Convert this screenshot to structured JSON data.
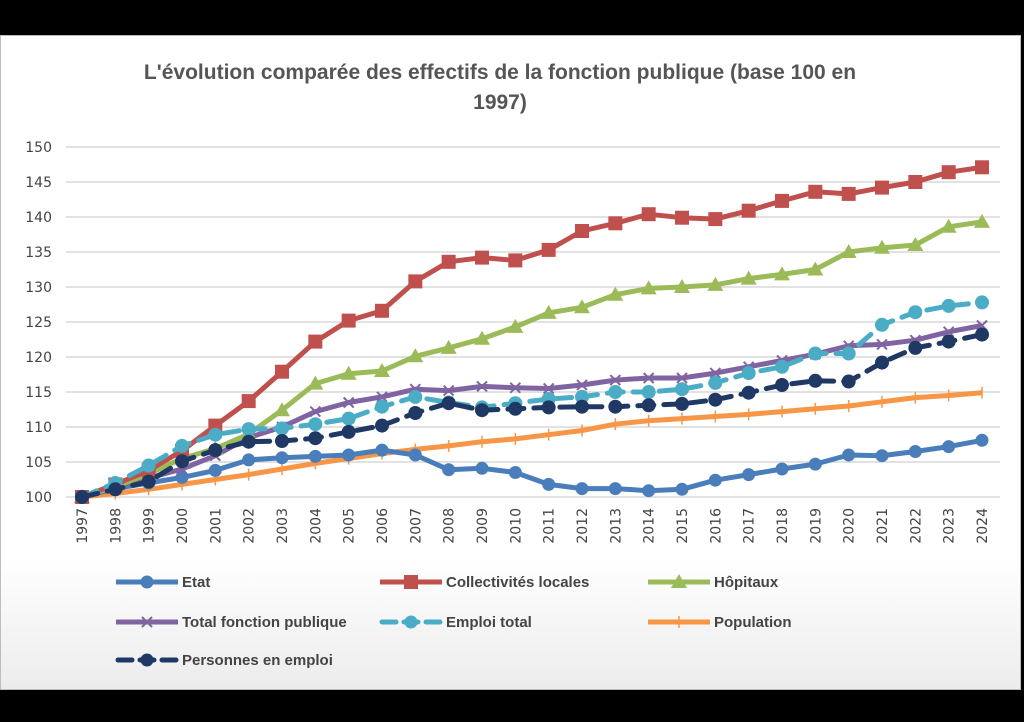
{
  "chart_data": {
    "type": "line",
    "title": "L'évolution comparée des effectifs de la fonction publique (base 100 en 1997)",
    "title_lines": [
      "L'évolution comparée des effectifs de la fonction publique (base 100 en",
      "1997)"
    ],
    "xlabel": "",
    "ylabel": "",
    "ylim": [
      100,
      150
    ],
    "yticks": [
      100,
      105,
      110,
      115,
      120,
      125,
      130,
      135,
      140,
      145,
      150
    ],
    "grid": true,
    "legend_position": "bottom",
    "categories": [
      "1997",
      "1998",
      "1999",
      "2000",
      "2001",
      "2002",
      "2003",
      "2004",
      "2005",
      "2006",
      "2007",
      "2008",
      "2009",
      "2010",
      "2011",
      "2012",
      "2013",
      "2014",
      "2015",
      "2016",
      "2017",
      "2018",
      "2019",
      "2020",
      "2021",
      "2022",
      "2023",
      "2024"
    ],
    "series": [
      {
        "name": "Etat",
        "color": "#4a7ebb",
        "marker": "circle",
        "dash": false,
        "values": [
          100,
          101.2,
          102.0,
          102.8,
          103.8,
          105.3,
          105.6,
          105.8,
          106.0,
          106.7,
          106.0,
          103.9,
          104.1,
          103.5,
          101.8,
          101.2,
          101.2,
          100.9,
          101.1,
          102.4,
          103.2,
          104.0,
          104.7,
          106.0,
          105.9,
          106.5,
          107.2,
          108.1
        ]
      },
      {
        "name": "Collectivités locales",
        "color": "#c0504d",
        "marker": "square",
        "dash": false,
        "values": [
          100,
          101.8,
          103.8,
          106.6,
          110.2,
          113.7,
          117.9,
          122.2,
          125.2,
          126.6,
          130.8,
          133.6,
          134.2,
          133.8,
          135.3,
          138.0,
          139.1,
          140.4,
          139.9,
          139.7,
          140.9,
          142.3,
          143.6,
          143.3,
          144.2,
          145.0,
          146.4,
          147.1
        ]
      },
      {
        "name": "Hôpitaux",
        "color": "#9bbb59",
        "marker": "triangle",
        "dash": false,
        "values": [
          100,
          101.5,
          103.3,
          105.5,
          106.9,
          109.0,
          112.4,
          116.2,
          117.6,
          118.0,
          120.1,
          121.3,
          122.6,
          124.3,
          126.3,
          127.1,
          128.9,
          129.8,
          130.0,
          130.3,
          131.2,
          131.8,
          132.5,
          135.0,
          135.6,
          136.0,
          138.6,
          139.3
        ]
      },
      {
        "name": "Total fonction publique",
        "color": "#8064a2",
        "marker": "x",
        "dash": false,
        "values": [
          100,
          101.5,
          102.7,
          104.0,
          105.9,
          108.5,
          110.0,
          112.2,
          113.5,
          114.3,
          115.4,
          115.2,
          115.8,
          115.6,
          115.5,
          116.0,
          116.7,
          117.0,
          117.0,
          117.7,
          118.6,
          119.5,
          120.4,
          121.6,
          121.8,
          122.4,
          123.6,
          124.5
        ]
      },
      {
        "name": "Emploi total",
        "color": "#4bacc6",
        "marker": "circle",
        "dash": true,
        "values": [
          100,
          102.0,
          104.5,
          107.3,
          108.9,
          109.7,
          109.8,
          110.4,
          111.2,
          112.9,
          114.3,
          113.5,
          112.8,
          113.4,
          114.0,
          114.3,
          115.0,
          115.0,
          115.4,
          116.3,
          117.7,
          118.6,
          120.5,
          120.5,
          124.6,
          126.4,
          127.3,
          127.8
        ]
      },
      {
        "name": "Population",
        "color": "#f79646",
        "marker": "plus",
        "dash": false,
        "values": [
          100,
          100.5,
          101.1,
          101.8,
          102.5,
          103.2,
          104.0,
          104.8,
          105.5,
          106.2,
          106.8,
          107.3,
          107.9,
          108.3,
          108.9,
          109.5,
          110.4,
          110.9,
          111.2,
          111.5,
          111.8,
          112.2,
          112.6,
          113.0,
          113.6,
          114.2,
          114.5,
          114.9
        ]
      },
      {
        "name": "Personnes en emploi",
        "color": "#1f3864",
        "marker": "circle",
        "dash": true,
        "values": [
          100,
          101.1,
          102.2,
          105.1,
          106.7,
          107.9,
          108.0,
          108.4,
          109.3,
          110.2,
          112.0,
          113.4,
          112.4,
          112.6,
          112.8,
          112.9,
          112.9,
          113.1,
          113.3,
          113.9,
          114.9,
          116.0,
          116.6,
          116.5,
          119.2,
          121.3,
          122.2,
          123.2
        ]
      }
    ]
  }
}
